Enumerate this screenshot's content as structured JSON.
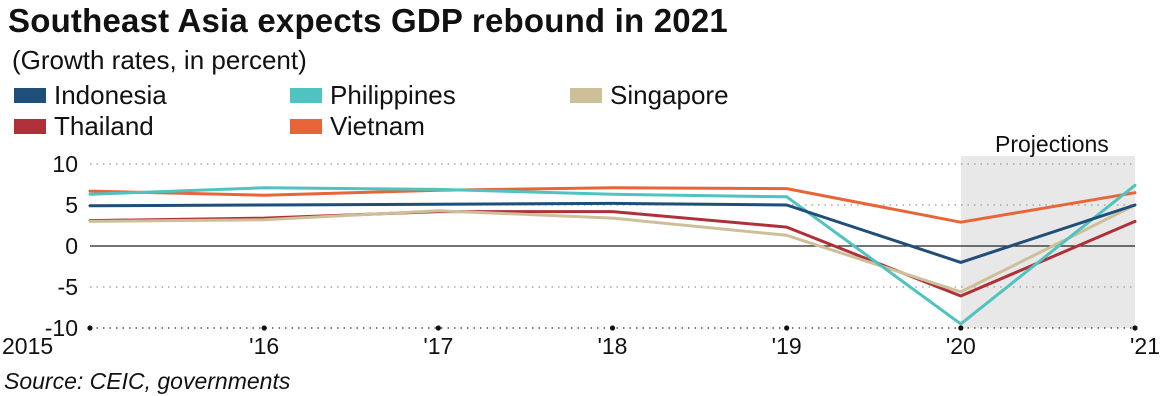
{
  "title": "Southeast Asia expects GDP rebound in 2021",
  "subtitle": "(Growth rates, in percent)",
  "source": "Source: CEIC, governments",
  "colors": {
    "Indonesia": "#1f4e79",
    "Philippines": "#4fc3bf",
    "Singapore": "#cdbf98",
    "Thailand": "#b0303a",
    "Vietnam": "#e8653a",
    "projection_shade": "#e8e8e8",
    "grid": "#999999"
  },
  "chart_data": {
    "type": "line",
    "x": [
      "2015",
      "'16",
      "'17",
      "'18",
      "'19",
      "'20",
      "'21"
    ],
    "ylim": [
      -10,
      10
    ],
    "yticks": [
      10,
      5,
      0,
      -5,
      -10
    ],
    "grid": true,
    "legend_position": "top",
    "annotations": [
      {
        "text": "Projections",
        "x_from": "'20",
        "x_to": "'21"
      }
    ],
    "series": [
      {
        "name": "Indonesia",
        "values": [
          4.9,
          5.0,
          5.1,
          5.2,
          5.0,
          -2.0,
          5.0
        ]
      },
      {
        "name": "Philippines",
        "values": [
          6.3,
          7.1,
          6.9,
          6.3,
          6.0,
          -9.5,
          7.4
        ]
      },
      {
        "name": "Singapore",
        "values": [
          3.0,
          3.2,
          4.3,
          3.4,
          1.3,
          -5.6,
          5.0
        ]
      },
      {
        "name": "Thailand",
        "values": [
          3.1,
          3.4,
          4.2,
          4.2,
          2.3,
          -6.1,
          3.0
        ]
      },
      {
        "name": "Vietnam",
        "values": [
          6.7,
          6.2,
          6.8,
          7.1,
          7.0,
          2.9,
          6.5
        ]
      }
    ]
  }
}
